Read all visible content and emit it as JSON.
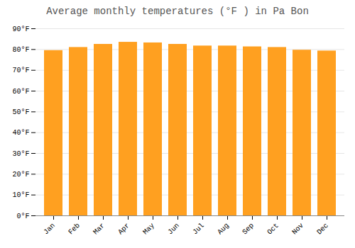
{
  "chart_data": {
    "type": "bar",
    "title": "Average monthly temperatures (°F ) in Pa Bon",
    "categories": [
      "Jan",
      "Feb",
      "Mar",
      "Apr",
      "May",
      "Jun",
      "Jul",
      "Aug",
      "Sep",
      "Oct",
      "Nov",
      "Dec"
    ],
    "values": [
      79.5,
      81.0,
      82.5,
      83.5,
      83.2,
      82.5,
      81.7,
      81.7,
      81.3,
      81.0,
      79.7,
      79.3
    ],
    "color": "#FFA020",
    "ylim": [
      0,
      90
    ],
    "yticks": [
      {
        "value": 0,
        "label": "0°F"
      },
      {
        "value": 10,
        "label": "10°F"
      },
      {
        "value": 20,
        "label": "20°F"
      },
      {
        "value": 30,
        "label": "30°F"
      },
      {
        "value": 40,
        "label": "40°F"
      },
      {
        "value": 50,
        "label": "50°F"
      },
      {
        "value": 60,
        "label": "60°F"
      },
      {
        "value": 70,
        "label": "70°F"
      },
      {
        "value": 80,
        "label": "80°F"
      },
      {
        "value": 90,
        "label": "90°F"
      }
    ],
    "grid": true
  }
}
